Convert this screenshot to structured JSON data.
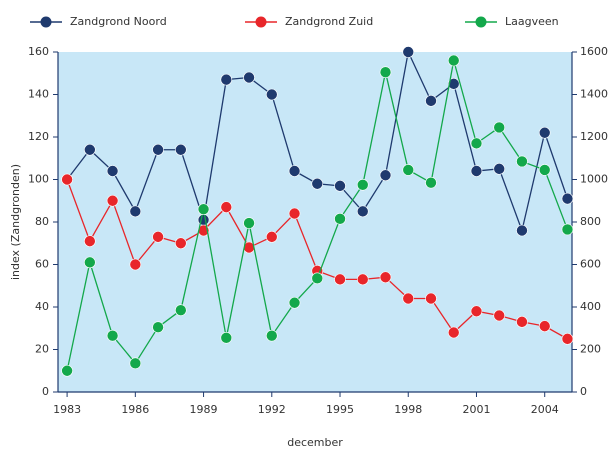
{
  "chart_data": {
    "type": "line",
    "x": [
      1983,
      1984,
      1985,
      1986,
      1987,
      1988,
      1989,
      1990,
      1991,
      1992,
      1993,
      1994,
      1995,
      1996,
      1997,
      1998,
      1999,
      2000,
      2001,
      2002,
      2003,
      2004,
      2005
    ],
    "xlim": [
      1982.6,
      2005.2
    ],
    "xticks": [
      1983,
      1986,
      1989,
      1992,
      1995,
      1998,
      2001,
      2004
    ],
    "xlabel": "december",
    "ylabel": "index (Zandgronden)",
    "ylim": [
      0,
      160
    ],
    "yticks": [
      0,
      20,
      40,
      60,
      80,
      100,
      120,
      140,
      160
    ],
    "y2lim": [
      0,
      1600
    ],
    "y2ticks": [
      0,
      200,
      400,
      600,
      800,
      1000,
      1200,
      1400,
      1600
    ],
    "background": "#c8e7f7",
    "legend": "top",
    "series": [
      {
        "name": "Zandgrond Noord",
        "color": "#1f3a6e",
        "values": [
          100,
          114,
          104,
          85,
          114,
          114,
          81,
          147,
          148,
          140,
          104,
          98,
          97,
          85,
          102,
          160,
          137,
          145,
          104,
          105,
          76,
          122,
          91
        ]
      },
      {
        "name": "Zandgrond Zuid",
        "color": "#e8262a",
        "values": [
          100,
          71,
          90,
          60,
          73,
          70,
          76,
          87,
          68,
          73,
          84,
          57,
          53,
          53,
          54,
          44,
          44,
          28,
          38,
          36,
          33,
          31,
          25
        ]
      },
      {
        "name": "Laagveen",
        "color": "#13a84b",
        "axis": "y2",
        "values": [
          100,
          610,
          265,
          135,
          305,
          385,
          860,
          255,
          795,
          265,
          420,
          535,
          815,
          975,
          1505,
          1045,
          985,
          1560,
          1170,
          1245,
          1085,
          1045,
          765
        ]
      }
    ]
  }
}
